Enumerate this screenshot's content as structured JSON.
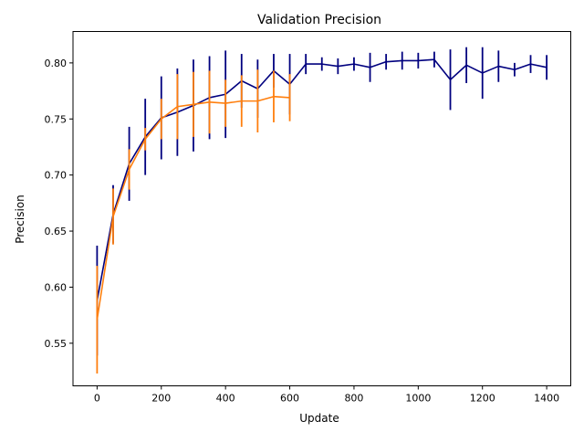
{
  "chart_data": {
    "type": "line",
    "title": "Validation Precision",
    "xlabel": "Update",
    "ylabel": "Precision",
    "xlim": [
      -75,
      1475
    ],
    "ylim": [
      0.512,
      0.828
    ],
    "xticks": [
      0,
      200,
      400,
      600,
      800,
      1000,
      1200,
      1400
    ],
    "xtick_labels": [
      "0",
      "200",
      "400",
      "600",
      "800",
      "1000",
      "1200",
      "1400"
    ],
    "yticks": [
      0.55,
      0.6,
      0.65,
      0.7,
      0.75,
      0.8
    ],
    "ytick_labels": [
      "0.55",
      "0.60",
      "0.65",
      "0.70",
      "0.75",
      "0.80"
    ],
    "grid": false,
    "legend": false,
    "series": [
      {
        "color": "#00007f",
        "x": [
          0,
          50,
          100,
          150,
          200,
          250,
          300,
          350,
          400,
          450,
          500,
          550,
          600,
          650,
          700,
          750,
          800,
          850,
          900,
          950,
          1000,
          1050,
          1100,
          1150,
          1200,
          1250,
          1300,
          1350,
          1400
        ],
        "y": [
          0.588,
          0.665,
          0.71,
          0.734,
          0.751,
          0.756,
          0.762,
          0.769,
          0.772,
          0.784,
          0.777,
          0.793,
          0.781,
          0.799,
          0.799,
          0.797,
          0.799,
          0.796,
          0.801,
          0.802,
          0.802,
          0.803,
          0.785,
          0.798,
          0.791,
          0.797,
          0.794,
          0.799,
          0.796
        ],
        "err": [
          0.049,
          0.026,
          0.033,
          0.034,
          0.037,
          0.039,
          0.041,
          0.037,
          0.039,
          0.024,
          0.026,
          0.015,
          0.027,
          0.009,
          0.006,
          0.007,
          0.006,
          0.013,
          0.007,
          0.008,
          0.007,
          0.007,
          0.027,
          0.016,
          0.023,
          0.014,
          0.006,
          0.008,
          0.011
        ]
      },
      {
        "color": "#ff7f0e",
        "x": [
          0,
          50,
          100,
          150,
          200,
          250,
          300,
          350,
          400,
          450,
          500,
          550,
          600
        ],
        "y": [
          0.571,
          0.663,
          0.705,
          0.732,
          0.75,
          0.761,
          0.763,
          0.765,
          0.764,
          0.766,
          0.766,
          0.77,
          0.769
        ],
        "err": [
          0.048,
          0.025,
          0.018,
          0.01,
          0.018,
          0.029,
          0.029,
          0.028,
          0.021,
          0.023,
          0.028,
          0.023,
          0.021
        ]
      }
    ]
  }
}
